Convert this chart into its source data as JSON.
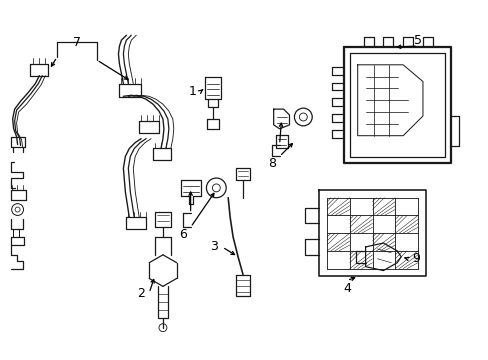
{
  "background_color": "#ffffff",
  "line_color": "#1a1a1a",
  "text_color": "#000000",
  "fig_width": 4.89,
  "fig_height": 3.6,
  "dpi": 100,
  "font_size": 9,
  "line_width": 0.9
}
